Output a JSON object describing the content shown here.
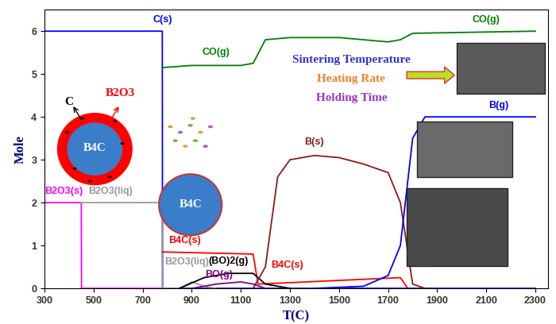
{
  "chart_data": {
    "type": "line",
    "x_label": "T(C)",
    "y_label": "Mole",
    "xlim": [
      300,
      2350
    ],
    "ylim": [
      0,
      6.5
    ],
    "xticks": [
      300,
      500,
      700,
      900,
      1100,
      1300,
      1500,
      1700,
      1900,
      2100,
      2300
    ],
    "yticks": [
      0,
      1,
      2,
      3,
      4,
      5,
      6
    ],
    "series": [
      {
        "name": "C(s)",
        "color": "#0000ff",
        "x": [
          300,
          780,
          781,
          2300
        ],
        "values": [
          6,
          6,
          0,
          0
        ]
      },
      {
        "name": "B2O3(s)",
        "color": "#ff00ff",
        "x": [
          300,
          450,
          451,
          780
        ],
        "values": [
          2,
          2,
          0,
          0
        ]
      },
      {
        "name": "B2O3(liq)",
        "color": "#999999",
        "x": [
          450,
          780,
          781,
          850,
          900,
          950,
          1000
        ],
        "values": [
          2,
          2,
          0,
          0,
          0.15,
          0.05,
          0
        ]
      },
      {
        "name": "CO(g)",
        "color": "#008000",
        "x": [
          780,
          900,
          1100,
          1150,
          1200,
          1300,
          1500,
          1700,
          1750,
          1800,
          2300
        ],
        "values": [
          5.15,
          5.2,
          5.2,
          5.25,
          5.8,
          5.85,
          5.85,
          5.75,
          5.8,
          5.95,
          6.0
        ]
      },
      {
        "name": "B4C(s)",
        "color": "#ff0000",
        "x": [
          780,
          1150,
          1170,
          1750,
          1780
        ],
        "values": [
          0.85,
          0.8,
          0.1,
          0.25,
          0
        ]
      },
      {
        "name": "(BO)2(g)",
        "color": "#000000",
        "x": [
          850,
          950,
          1050,
          1150,
          1200,
          1300
        ],
        "values": [
          0,
          0.25,
          0.35,
          0.35,
          0.1,
          0
        ]
      },
      {
        "name": "BO(g)",
        "color": "#800080",
        "x": [
          900,
          1000,
          1100,
          1150,
          1200
        ],
        "values": [
          0,
          0.1,
          0.15,
          0.1,
          0
        ]
      },
      {
        "name": "B(s)",
        "color": "#8b1a1a",
        "x": [
          1150,
          1200,
          1250,
          1300,
          1400,
          1500,
          1600,
          1700,
          1750,
          1800,
          1850
        ],
        "values": [
          0,
          0.5,
          2.6,
          3.0,
          3.1,
          3.05,
          2.9,
          2.7,
          2.0,
          0.1,
          0
        ]
      },
      {
        "name": "B(g)",
        "color": "#0000ff",
        "x": [
          1400,
          1600,
          1700,
          1750,
          1800,
          1850,
          2300
        ],
        "values": [
          0,
          0.05,
          0.3,
          1.0,
          3.5,
          4.0,
          4.0
        ]
      }
    ],
    "annotations": [
      {
        "text": "C(s)",
        "x": 780,
        "y": 6.15,
        "color": "#0000ff"
      },
      {
        "text": "CO(g)",
        "x": 1000,
        "y": 5.4,
        "color": "#008000"
      },
      {
        "text": "CO(g)",
        "x": 2100,
        "y": 6.15,
        "color": "#008000"
      },
      {
        "text": "B2O3(s)",
        "x": 380,
        "y": 2.15,
        "color": "#ff00ff"
      },
      {
        "text": "B2O3(liq)",
        "x": 570,
        "y": 2.15,
        "color": "#999999"
      },
      {
        "text": "B4C(s)",
        "x": 870,
        "y": 1.0,
        "color": "#ff0000"
      },
      {
        "text": "B2O3(liq)",
        "x": 880,
        "y": 0.5,
        "color": "#999999"
      },
      {
        "text": "(BO)2(g)",
        "x": 1050,
        "y": 0.52,
        "color": "#000000"
      },
      {
        "text": "BO(g)",
        "x": 1010,
        "y": 0.2,
        "color": "#800080"
      },
      {
        "text": "B4C(s)",
        "x": 1290,
        "y": 0.42,
        "color": "#ff0000"
      },
      {
        "text": "B(s)",
        "x": 1400,
        "y": 3.3,
        "color": "#8b1a1a"
      },
      {
        "text": "B(g)",
        "x": 2150,
        "y": 4.15,
        "color": "#0000ff"
      }
    ],
    "inset_texts": [
      {
        "text": "Sintering Temperature",
        "x": 1550,
        "y": 5.33,
        "color": "#3333cc"
      },
      {
        "text": "Heating Rate",
        "x": 1550,
        "y": 4.88,
        "color": "#f08030"
      },
      {
        "text": "Holding Time",
        "x": 1550,
        "y": 4.44,
        "color": "#9933cc"
      },
      {
        "text": "B4C",
        "x": 505,
        "y": 3.27,
        "color": "#ffffff"
      },
      {
        "text": "C",
        "x": 400,
        "y": 4.35,
        "color": "#000000"
      },
      {
        "text": "B2O3",
        "x": 610,
        "y": 4.55,
        "color": "#ff0000"
      },
      {
        "text": "B4C",
        "x": 895,
        "y": 1.95,
        "color": "#ffffff"
      }
    ]
  }
}
